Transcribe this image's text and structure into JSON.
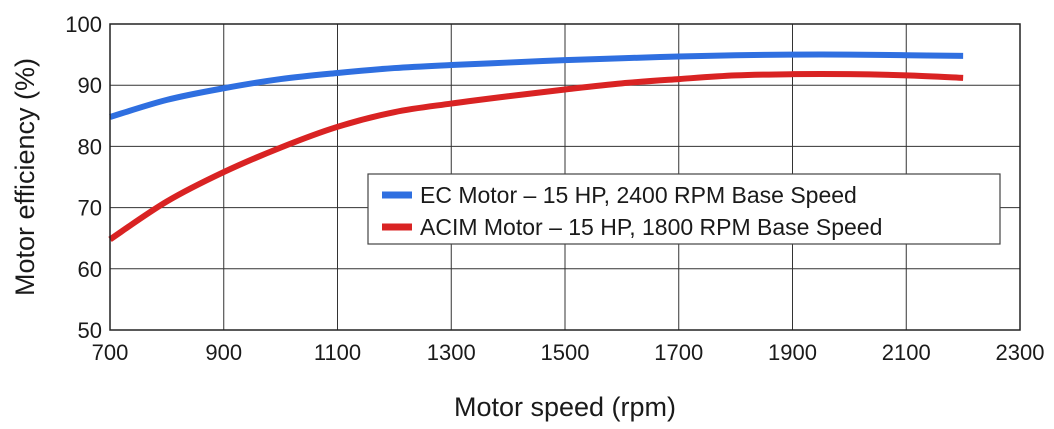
{
  "chart_data": {
    "type": "line",
    "title": "",
    "xlabel": "Motor speed (rpm)",
    "ylabel": "Motor efficiency (%)",
    "xlim": [
      700,
      2300
    ],
    "ylim": [
      50,
      100
    ],
    "xticks": [
      700,
      900,
      1100,
      1300,
      1500,
      1700,
      1900,
      2100,
      2300
    ],
    "yticks": [
      50,
      60,
      70,
      80,
      90,
      100
    ],
    "grid": true,
    "legend_position": "center-right",
    "series": [
      {
        "name": "EC Motor – 15 HP, 2400 RPM Base Speed",
        "color": "#2f6fe0",
        "x": [
          700,
          800,
          900,
          1000,
          1100,
          1200,
          1300,
          1400,
          1500,
          1600,
          1700,
          1800,
          1900,
          2000,
          2100,
          2200
        ],
        "y": [
          84.8,
          87.6,
          89.5,
          91.0,
          92.0,
          92.8,
          93.3,
          93.7,
          94.1,
          94.4,
          94.7,
          94.9,
          95.0,
          95.0,
          94.9,
          94.8
        ]
      },
      {
        "name": "ACIM Motor – 15 HP, 1800 RPM Base Speed",
        "color": "#d92323",
        "x": [
          700,
          800,
          900,
          1000,
          1100,
          1200,
          1300,
          1400,
          1500,
          1600,
          1700,
          1800,
          1900,
          2000,
          2100,
          2200
        ],
        "y": [
          64.8,
          71.0,
          75.8,
          79.8,
          83.2,
          85.6,
          87.0,
          88.2,
          89.3,
          90.3,
          91.0,
          91.6,
          91.8,
          91.8,
          91.6,
          91.2
        ]
      }
    ]
  }
}
